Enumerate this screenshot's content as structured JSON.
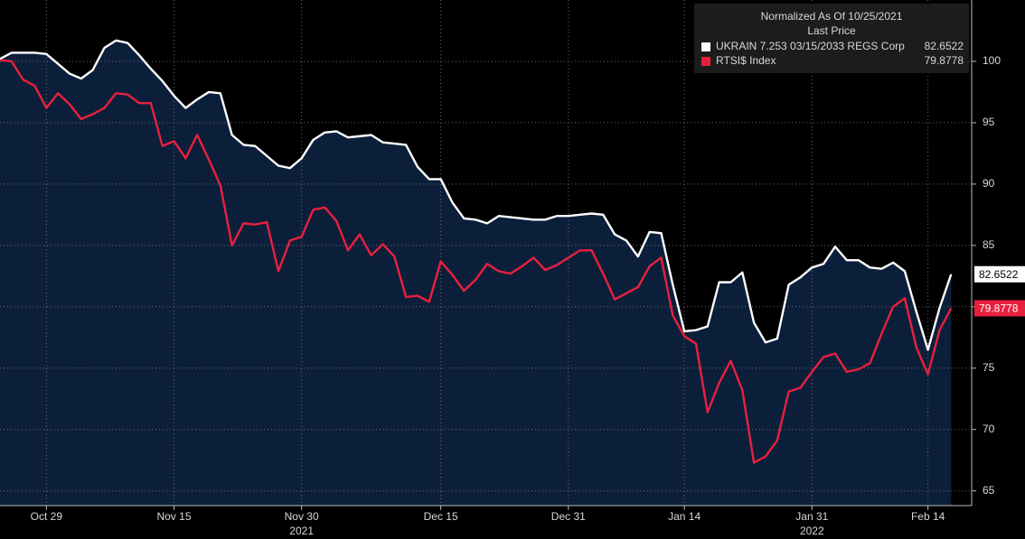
{
  "chart_data": {
    "type": "line",
    "legend_title": "Normalized As Of 10/25/2021",
    "legend_subtitle": "Last Price",
    "legend": "top-right",
    "area_fill": "#0c1f3a",
    "grid": true,
    "categories": [
      null,
      null,
      null,
      null,
      "Oct 29",
      null,
      null,
      null,
      null,
      null,
      null,
      null,
      null,
      null,
      null,
      "Nov 15",
      null,
      null,
      null,
      null,
      null,
      null,
      null,
      null,
      null,
      null,
      "Nov 30",
      null,
      null,
      null,
      null,
      null,
      null,
      null,
      null,
      null,
      null,
      null,
      "Dec 15",
      null,
      null,
      null,
      null,
      null,
      null,
      null,
      null,
      null,
      null,
      "Dec 31",
      null,
      null,
      null,
      null,
      null,
      null,
      null,
      null,
      null,
      "Jan 14",
      null,
      null,
      null,
      null,
      null,
      null,
      null,
      null,
      null,
      null,
      "Jan 31",
      null,
      null,
      null,
      null,
      null,
      null,
      null,
      null,
      null,
      "Feb 14",
      null,
      null
    ],
    "x_years": [
      null,
      null,
      null,
      null,
      null,
      null,
      null,
      null,
      null,
      null,
      null,
      null,
      null,
      null,
      null,
      null,
      null,
      null,
      null,
      null,
      null,
      null,
      null,
      null,
      null,
      null,
      "2021",
      null,
      null,
      null,
      null,
      null,
      null,
      null,
      null,
      null,
      null,
      null,
      null,
      null,
      null,
      null,
      null,
      null,
      null,
      null,
      null,
      null,
      null,
      null,
      null,
      null,
      null,
      null,
      null,
      null,
      null,
      null,
      null,
      null,
      null,
      null,
      null,
      null,
      null,
      null,
      null,
      null,
      null,
      null,
      "2022",
      null,
      null,
      null,
      null,
      null,
      null,
      null,
      null,
      null,
      null,
      null,
      null
    ],
    "ylim": [
      63.8,
      105
    ],
    "yticks": [
      65,
      70,
      75,
      80,
      85,
      90,
      95,
      100
    ],
    "series": [
      {
        "name": "UKRAIN 7.253 03/15/2033 REGS Corp",
        "color": "#ffffff",
        "label_text_color": "#000000",
        "values": [
          100.2,
          100.7,
          100.7,
          100.7,
          100.6,
          99.8,
          99.0,
          98.6,
          99.3,
          101.1,
          101.7,
          101.5,
          100.5,
          99.4,
          98.4,
          97.2,
          96.2,
          96.9,
          97.5,
          97.4,
          94.0,
          93.2,
          93.1,
          92.3,
          91.5,
          91.3,
          92.1,
          93.6,
          94.2,
          94.3,
          93.8,
          93.9,
          94.0,
          93.4,
          93.3,
          93.2,
          91.4,
          90.4,
          90.4,
          88.5,
          87.2,
          87.1,
          86.8,
          87.4,
          87.3,
          87.2,
          87.1,
          87.1,
          87.4,
          87.4,
          87.5,
          87.6,
          87.5,
          85.9,
          85.4,
          84.1,
          86.1,
          86.0,
          81.8,
          78.0,
          78.1,
          78.4,
          82.0,
          82.0,
          82.8,
          78.7,
          77.1,
          77.4,
          81.8,
          82.4,
          83.2,
          83.5,
          84.9,
          83.8,
          83.8,
          83.2,
          83.1,
          83.6,
          82.9,
          79.6,
          76.5,
          79.9,
          82.6522
        ]
      },
      {
        "name": "RTSI$ Index",
        "color": "#e8203e",
        "label_text_color": "#ffffff",
        "values": [
          100.1,
          100.0,
          98.5,
          98.0,
          96.2,
          97.4,
          96.5,
          95.3,
          95.7,
          96.2,
          97.4,
          97.3,
          96.6,
          96.6,
          93.1,
          93.5,
          92.1,
          94.0,
          92.0,
          89.9,
          85.0,
          86.8,
          86.7,
          86.9,
          82.9,
          85.4,
          85.7,
          87.9,
          88.1,
          87.0,
          84.6,
          85.9,
          84.2,
          85.1,
          84.1,
          80.8,
          80.9,
          80.4,
          83.7,
          82.6,
          81.3,
          82.2,
          83.5,
          82.9,
          82.7,
          83.3,
          84.0,
          83.0,
          83.4,
          84.0,
          84.6,
          84.6,
          82.7,
          80.6,
          81.1,
          81.6,
          83.3,
          84.0,
          79.3,
          77.6,
          77.0,
          71.4,
          73.8,
          75.6,
          73.2,
          67.3,
          67.8,
          69.1,
          73.1,
          73.4,
          74.7,
          75.9,
          76.2,
          74.7,
          74.9,
          75.4,
          77.8,
          80.0,
          80.7,
          76.7,
          74.5,
          78.1,
          79.8778
        ]
      }
    ]
  }
}
